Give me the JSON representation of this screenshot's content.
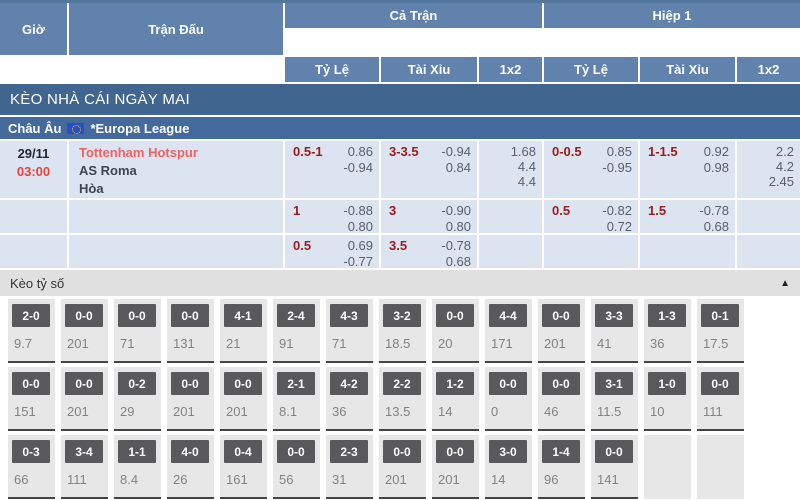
{
  "header": {
    "time_col": "Giờ",
    "match_col": "Trận Đấu",
    "full_match": "Cả Trận",
    "first_half": "Hiệp 1",
    "odds_label": "Tỷ Lệ",
    "total_label": "Tài Xỉu",
    "x12_label": "1x2"
  },
  "banner": "KÈO NHÀ CÁI NGÀY MAI",
  "league": {
    "region": "Châu Âu",
    "name": "*Europa League",
    "flag_icon": "eu-flag"
  },
  "match": {
    "date": "29/11",
    "time": "03:00",
    "home": "Tottenham Hotspur",
    "away": "AS Roma",
    "draw": "Hòa"
  },
  "odds_rows": [
    {
      "ft": {
        "hdp": "0.5-1",
        "o1": "0.86",
        "o2": "-0.94",
        "ou": "3-3.5",
        "u1": "-0.94",
        "u2": "0.84",
        "x1": "1.68",
        "x2": "4.4",
        "x3": "4.4"
      },
      "h1": {
        "hdp": "0-0.5",
        "o1": "0.85",
        "o2": "-0.95",
        "ou": "1-1.5",
        "u1": "0.92",
        "u2": "0.98",
        "x1": "2.2",
        "x2": "4.2",
        "x3": "2.45"
      }
    },
    {
      "ft": {
        "hdp": "1",
        "o1": "-0.88",
        "o2": "0.80",
        "ou": "3",
        "u1": "-0.90",
        "u2": "0.80"
      },
      "h1": {
        "hdp": "0.5",
        "o1": "-0.82",
        "o2": "0.72",
        "ou": "1.5",
        "u1": "-0.78",
        "u2": "0.68"
      }
    },
    {
      "ft": {
        "hdp": "0.5",
        "o1": "0.69",
        "o2": "-0.77",
        "ou": "3.5",
        "u1": "-0.78",
        "u2": "0.68"
      },
      "h1": {}
    }
  ],
  "score_section": {
    "title": "Kèo tỷ số",
    "collapse_icon": "▲",
    "rows": [
      [
        {
          "score": "2-0",
          "value": "9.7"
        },
        {
          "score": "0-0",
          "value": "201"
        },
        {
          "score": "0-0",
          "value": "71"
        },
        {
          "score": "0-0",
          "value": "131"
        },
        {
          "score": "4-1",
          "value": "21"
        },
        {
          "score": "2-4",
          "value": "91"
        },
        {
          "score": "4-3",
          "value": "71"
        },
        {
          "score": "3-2",
          "value": "18.5"
        },
        {
          "score": "0-0",
          "value": "20"
        },
        {
          "score": "4-4",
          "value": "171"
        },
        {
          "score": "0-0",
          "value": "201"
        },
        {
          "score": "3-3",
          "value": "41"
        },
        {
          "score": "1-3",
          "value": "36"
        },
        {
          "score": "0-1",
          "value": "17.5"
        }
      ],
      [
        {
          "score": "0-0",
          "value": "151"
        },
        {
          "score": "0-0",
          "value": "201"
        },
        {
          "score": "0-2",
          "value": "29"
        },
        {
          "score": "0-0",
          "value": "201"
        },
        {
          "score": "0-0",
          "value": "201"
        },
        {
          "score": "2-1",
          "value": "8.1"
        },
        {
          "score": "4-2",
          "value": "36"
        },
        {
          "score": "2-2",
          "value": "13.5"
        },
        {
          "score": "1-2",
          "value": "14"
        },
        {
          "score": "0-0",
          "value": "0"
        },
        {
          "score": "0-0",
          "value": "46"
        },
        {
          "score": "3-1",
          "value": "11.5"
        },
        {
          "score": "1-0",
          "value": "10"
        },
        {
          "score": "0-0",
          "value": "111"
        }
      ],
      [
        {
          "score": "0-3",
          "value": "66"
        },
        {
          "score": "3-4",
          "value": "111"
        },
        {
          "score": "1-1",
          "value": "8.4"
        },
        {
          "score": "4-0",
          "value": "26"
        },
        {
          "score": "0-4",
          "value": "161"
        },
        {
          "score": "0-0",
          "value": "56"
        },
        {
          "score": "2-3",
          "value": "31"
        },
        {
          "score": "0-0",
          "value": "201"
        },
        {
          "score": "0-0",
          "value": "201"
        },
        {
          "score": "3-0",
          "value": "14"
        },
        {
          "score": "1-4",
          "value": "96"
        },
        {
          "score": "0-0",
          "value": "141"
        },
        {},
        {}
      ]
    ]
  },
  "colors": {
    "header_blue": "#6182ad",
    "banner_blue": "#40658f",
    "row_blue": "#dce4f1",
    "handicap_red": "#9b1a1a",
    "team_red": "#f26161",
    "score_box_gray": "#59595b"
  }
}
